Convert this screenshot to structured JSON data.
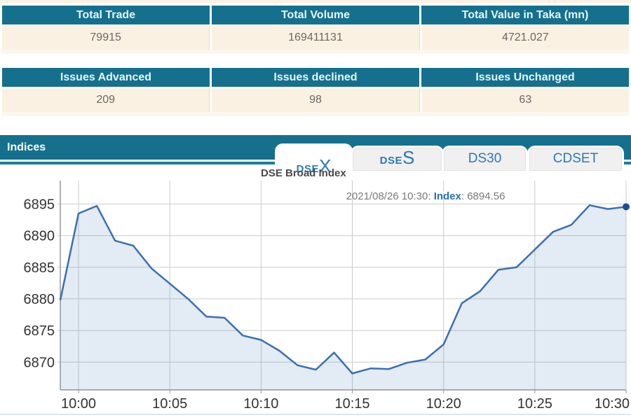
{
  "summary_table_1": {
    "headers": [
      "Total Trade",
      "Total Volume",
      "Total Value in Taka (mn)"
    ],
    "values": [
      "79915",
      "169411131",
      "4721.027"
    ]
  },
  "summary_table_2": {
    "headers": [
      "Issues Advanced",
      "Issues declined",
      "Issues Unchanged"
    ],
    "values": [
      "209",
      "98",
      "63"
    ]
  },
  "indices": {
    "title": "Indices",
    "tabs": [
      {
        "prefix": "DSE",
        "big": "X",
        "active": true
      },
      {
        "prefix": "DSE",
        "big": "S",
        "active": false
      },
      {
        "label": "DS30",
        "active": false
      },
      {
        "label": "CDSET",
        "active": false
      }
    ]
  },
  "chart_data": {
    "type": "area",
    "title": "DSE Broad Index",
    "annotation": {
      "datetime": "2021/08/26 10:30: ",
      "label": "Index",
      "value": ": 6894.56"
    },
    "x_tick_labels": [
      "10:00",
      "10:05",
      "10:10",
      "10:15",
      "10:20",
      "10:25",
      "10:30"
    ],
    "x_tick_point_indices": [
      1,
      6,
      11,
      16,
      21,
      26,
      31
    ],
    "y_ticks": [
      6870,
      6875,
      6880,
      6885,
      6890,
      6895
    ],
    "ylim": [
      6865.6,
      6898.7
    ],
    "x_minutes_per_point": 1,
    "last_point": {
      "time": "10:30",
      "index_value": 6894.56
    },
    "values": [
      6879.8,
      6893.5,
      6894.7,
      6889.2,
      6888.4,
      6884.8,
      6882.4,
      6880.0,
      6877.2,
      6877.0,
      6874.2,
      6873.5,
      6871.8,
      6869.5,
      6868.8,
      6871.5,
      6868.2,
      6869.0,
      6868.9,
      6869.9,
      6870.4,
      6872.8,
      6879.3,
      6881.2,
      6884.6,
      6885.0,
      6887.8,
      6890.6,
      6891.7,
      6894.8,
      6894.2,
      6894.56
    ],
    "colors": {
      "line": "#3B6FB2",
      "fill": "rgba(59,111,178,0.14)",
      "marker": "#1A4E96",
      "grid": "#CCCCCC",
      "axis": "#999999",
      "tick_text": "#333333",
      "teal": "#15708E",
      "accent_blue": "#2A79B8",
      "cream": "#FBF1E3"
    }
  }
}
